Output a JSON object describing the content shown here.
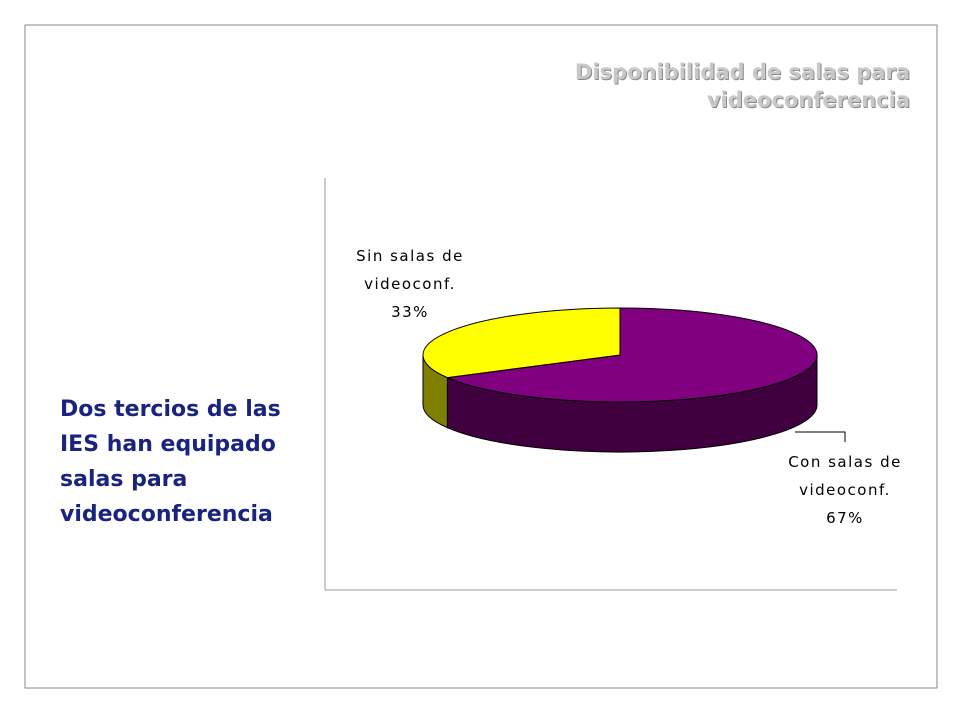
{
  "chart_data": {
    "type": "pie",
    "title": "Disponibilidad de salas para videoconferencia",
    "annotation": "Dos tercios de las IES han equipado salas para videoconferencia",
    "categories": [
      "Sin salas de videoconf.",
      "Con salas de videoconf."
    ],
    "values": [
      33,
      67
    ],
    "value_labels": [
      "33%",
      "67%"
    ],
    "colors": [
      "#ffff00",
      "#800080"
    ]
  }
}
